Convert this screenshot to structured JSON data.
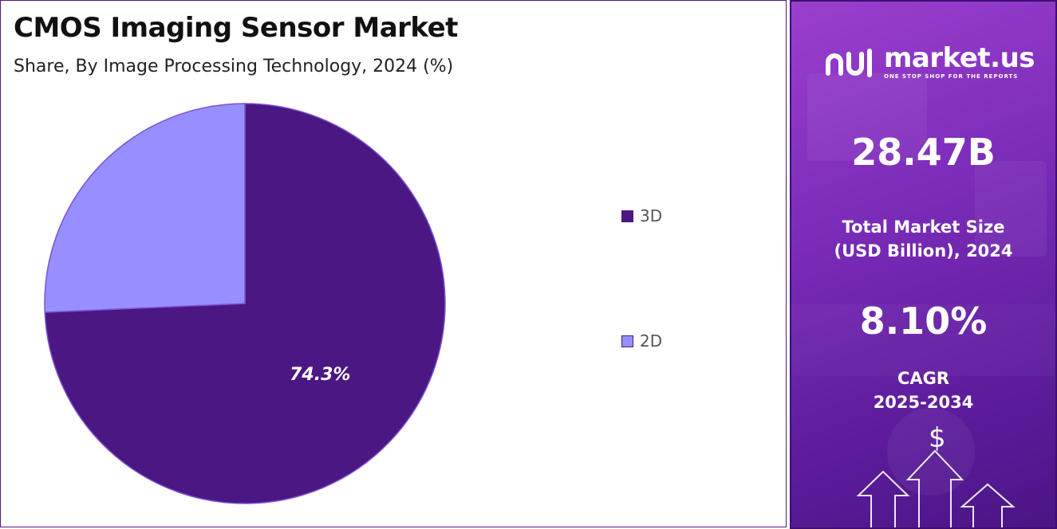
{
  "chart_data": {
    "type": "pie",
    "title": "CMOS Imaging Sensor Market",
    "subtitle": "Share, By Image Processing Technology, 2024 (%)",
    "slices": [
      {
        "label": "3D",
        "value": 74.3,
        "color": "#4b1782",
        "data_label": "74.3%"
      },
      {
        "label": "2D",
        "value": 25.7,
        "color": "#978fff",
        "data_label": ""
      }
    ],
    "start_angle_deg": 0,
    "direction": "clockwise",
    "legend_position": "right"
  },
  "side_panel": {
    "logo": {
      "name": "market.us",
      "tagline": "ONE STOP SHOP FOR THE REPORTS"
    },
    "market_size": {
      "value": "28.47B",
      "label_line1": "Total Market Size",
      "label_line2": "(USD Billion), 2024"
    },
    "cagr": {
      "value": "8.10%",
      "label_line1": "CAGR",
      "label_line2": "2025-2034"
    },
    "dollar_symbol": "$"
  },
  "colors": {
    "accent": "#4b1782",
    "secondary": "#978fff",
    "panel": "#7a2bb8"
  },
  "icons": [
    "market-us-logo-icon",
    "dollar-icon",
    "up-arrow-icon"
  ]
}
